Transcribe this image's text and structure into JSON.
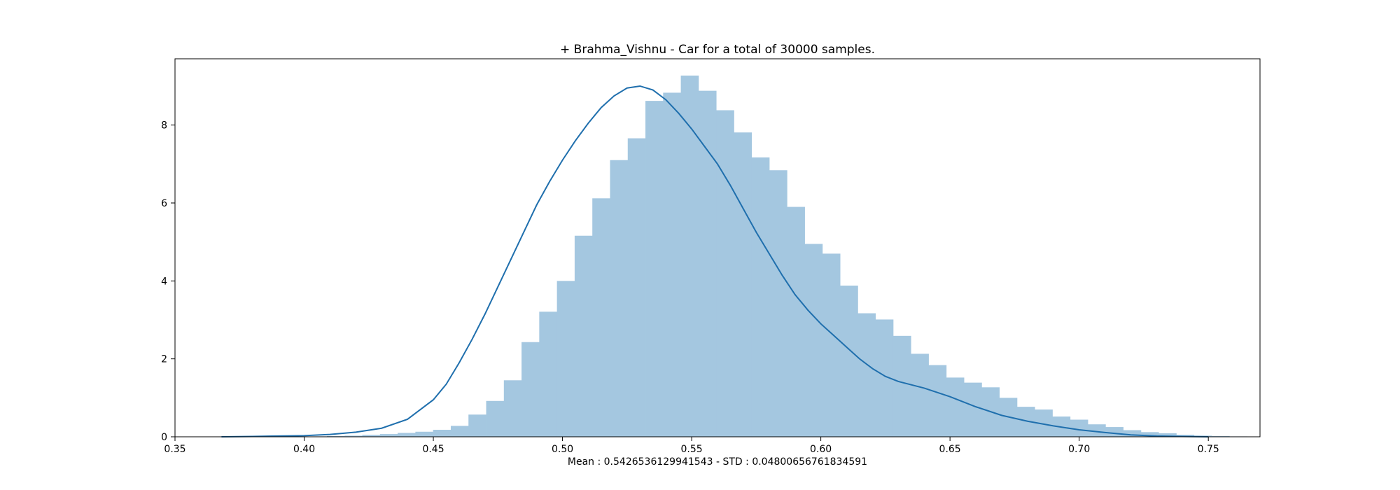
{
  "chart_data": {
    "type": "bar",
    "title": "+ Brahma_Vishnu - Car for a total of 30000 samples.",
    "xlabel": "Mean : 0.5426536129941543 - STD : 0.04800656761834591",
    "ylabel": "",
    "xlim": [
      0.35,
      0.77
    ],
    "ylim": [
      0,
      9.7
    ],
    "xticks": [
      0.35,
      0.4,
      0.45,
      0.5,
      0.55,
      0.6,
      0.65,
      0.7,
      0.75
    ],
    "xtick_labels": [
      "0.35",
      "0.40",
      "0.45",
      "0.50",
      "0.55",
      "0.60",
      "0.65",
      "0.70",
      "0.75"
    ],
    "yticks": [
      0,
      2,
      4,
      6,
      8
    ],
    "ytick_labels": [
      "0",
      "2",
      "4",
      "6",
      "8"
    ],
    "grid": false,
    "histogram": {
      "bin_start": 0.3677,
      "bin_width": 0.00685,
      "heights": [
        0.01,
        0.0,
        0.0,
        0.01,
        0.0,
        0.01,
        0.02,
        0.03,
        0.05,
        0.07,
        0.1,
        0.13,
        0.18,
        0.28,
        0.57,
        0.92,
        1.45,
        2.43,
        3.21,
        4.0,
        5.16,
        6.12,
        7.1,
        7.66,
        8.62,
        8.83,
        9.27,
        8.88,
        8.38,
        7.81,
        7.17,
        6.84,
        5.9,
        4.95,
        4.7,
        3.88,
        3.17,
        3.01,
        2.59,
        2.13,
        1.84,
        1.52,
        1.39,
        1.27,
        1.0,
        0.77,
        0.7,
        0.52,
        0.44,
        0.32,
        0.25,
        0.17,
        0.12,
        0.09,
        0.05,
        0.03,
        0.02,
        0.01
      ],
      "color": "#a4c7e0"
    },
    "kde": {
      "x": [
        0.368,
        0.38,
        0.39,
        0.4,
        0.41,
        0.42,
        0.43,
        0.44,
        0.45,
        0.455,
        0.46,
        0.465,
        0.47,
        0.475,
        0.48,
        0.485,
        0.49,
        0.495,
        0.5,
        0.505,
        0.51,
        0.515,
        0.52,
        0.525,
        0.53,
        0.535,
        0.54,
        0.545,
        0.55,
        0.555,
        0.56,
        0.565,
        0.57,
        0.575,
        0.58,
        0.585,
        0.59,
        0.595,
        0.6,
        0.605,
        0.61,
        0.615,
        0.62,
        0.625,
        0.63,
        0.64,
        0.65,
        0.66,
        0.67,
        0.68,
        0.69,
        0.7,
        0.71,
        0.72,
        0.73,
        0.74,
        0.75
      ],
      "y": [
        0.0,
        0.01,
        0.02,
        0.03,
        0.06,
        0.12,
        0.22,
        0.45,
        0.95,
        1.35,
        1.9,
        2.5,
        3.15,
        3.85,
        4.55,
        5.25,
        5.95,
        6.55,
        7.1,
        7.6,
        8.05,
        8.45,
        8.75,
        8.95,
        9.0,
        8.9,
        8.65,
        8.3,
        7.9,
        7.45,
        7.0,
        6.45,
        5.85,
        5.25,
        4.7,
        4.15,
        3.65,
        3.25,
        2.9,
        2.6,
        2.3,
        2.0,
        1.75,
        1.55,
        1.42,
        1.25,
        1.03,
        0.77,
        0.55,
        0.4,
        0.28,
        0.18,
        0.11,
        0.05,
        0.02,
        0.01,
        0.0
      ],
      "color": "#1f6fad"
    }
  }
}
